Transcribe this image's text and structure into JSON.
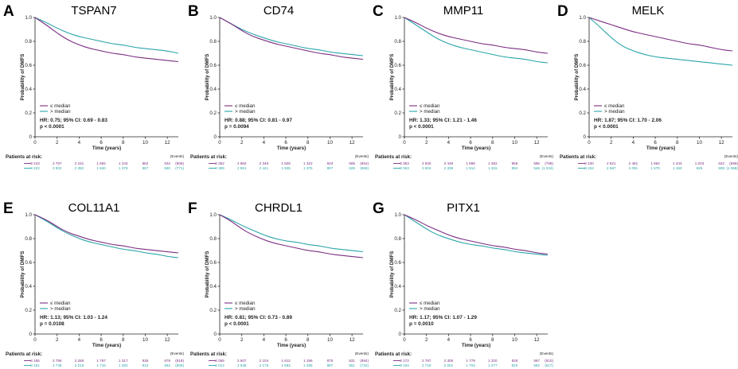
{
  "colors": {
    "low": "#7b2d82",
    "high": "#2aa5a8"
  },
  "labels": {
    "y_axis": "Probability of DMFS",
    "x_axis": "Time (years)",
    "patients_at_risk": "Patients at risk:",
    "events": "(Events)",
    "legend_low": "≤ median",
    "legend_high": "> median"
  },
  "chart_data": [
    {
      "type": "line",
      "letter": "A",
      "title": "TSPAN7",
      "xlim": [
        0,
        13
      ],
      "ylim": [
        0,
        1.0
      ],
      "xticks": [
        "0",
        "2",
        "4",
        "6",
        "8",
        "10",
        "12"
      ],
      "yticks": [
        "0",
        "0.2",
        "0.4",
        "0.6",
        "0.8",
        "1.0"
      ],
      "series": [
        {
          "name": "≤ median",
          "x": [
            0,
            1,
            2,
            3,
            4,
            5,
            6,
            7,
            8,
            9,
            10,
            11,
            12,
            13
          ],
          "y": [
            1.0,
            0.94,
            0.87,
            0.81,
            0.77,
            0.74,
            0.72,
            0.7,
            0.69,
            0.67,
            0.66,
            0.65,
            0.64,
            0.63
          ]
        },
        {
          "name": "> median",
          "x": [
            0,
            1,
            2,
            3,
            4,
            5,
            6,
            7,
            8,
            9,
            10,
            11,
            12,
            13
          ],
          "y": [
            1.0,
            0.96,
            0.91,
            0.87,
            0.84,
            0.82,
            0.8,
            0.78,
            0.77,
            0.75,
            0.74,
            0.73,
            0.72,
            0.7
          ]
        }
      ],
      "hr_lines": [
        "HR: 0.75; 95% CI: 0.69 - 0.83",
        "p < 0.0001"
      ],
      "risk_low": [
        "3 243",
        "2 767",
        "2 231",
        "1 692",
        "1 244",
        "882",
        "532"
      ],
      "events_low": "(906)",
      "risk_high": [
        "3 222",
        "2 822",
        "2 352",
        "1 840",
        "1 379",
        "967",
        "590"
      ],
      "events_high": "(771)"
    },
    {
      "type": "line",
      "letter": "B",
      "title": "CD74",
      "xlim": [
        0,
        13
      ],
      "ylim": [
        0,
        1.0
      ],
      "xticks": [
        "0",
        "2",
        "4",
        "6",
        "8",
        "10",
        "12"
      ],
      "yticks": [
        "0",
        "0.2",
        "0.4",
        "0.6",
        "0.8",
        "1.0"
      ],
      "series": [
        {
          "name": "≤ median",
          "x": [
            0,
            1,
            2,
            3,
            4,
            5,
            6,
            7,
            8,
            9,
            10,
            11,
            12,
            13
          ],
          "y": [
            1.0,
            0.95,
            0.89,
            0.84,
            0.81,
            0.78,
            0.76,
            0.74,
            0.72,
            0.7,
            0.69,
            0.67,
            0.66,
            0.65
          ]
        },
        {
          "name": "> median",
          "x": [
            0,
            1,
            2,
            3,
            4,
            5,
            6,
            7,
            8,
            9,
            10,
            11,
            12,
            13
          ],
          "y": [
            1.0,
            0.95,
            0.9,
            0.86,
            0.83,
            0.8,
            0.78,
            0.76,
            0.74,
            0.73,
            0.71,
            0.7,
            0.69,
            0.68
          ]
        }
      ],
      "hr_lines": [
        "HR: 0.88; 95% CI: 0.81 - 0.97",
        "p = 0.0094"
      ],
      "risk_low": [
        "3 352",
        "2 862",
        "2 348",
        "1 828",
        "1 322",
        "943",
        "605"
      ],
      "events_low": "(954)",
      "risk_high": [
        "3 369",
        "2 861",
        "2 441",
        "1 935",
        "1 375",
        "907",
        "629"
      ],
      "events_high": "(868)"
    },
    {
      "type": "line",
      "letter": "C",
      "title": "MMP11",
      "xlim": [
        0,
        13
      ],
      "ylim": [
        0,
        1.0
      ],
      "xticks": [
        "0",
        "2",
        "4",
        "6",
        "8",
        "10",
        "12"
      ],
      "yticks": [
        "0",
        "0.2",
        "0.4",
        "0.6",
        "0.8",
        "1.0"
      ],
      "series": [
        {
          "name": "≤ median",
          "x": [
            0,
            1,
            2,
            3,
            4,
            5,
            6,
            7,
            8,
            9,
            10,
            11,
            12,
            13
          ],
          "y": [
            1.0,
            0.96,
            0.91,
            0.87,
            0.84,
            0.82,
            0.8,
            0.78,
            0.77,
            0.75,
            0.74,
            0.73,
            0.71,
            0.7
          ]
        },
        {
          "name": "> median",
          "x": [
            0,
            1,
            2,
            3,
            4,
            5,
            6,
            7,
            8,
            9,
            10,
            11,
            12,
            13
          ],
          "y": [
            1.0,
            0.94,
            0.88,
            0.82,
            0.78,
            0.75,
            0.73,
            0.71,
            0.69,
            0.67,
            0.66,
            0.65,
            0.63,
            0.62
          ]
        }
      ],
      "hr_lines": [
        "HR: 1.33; 95% CI: 1.21 - 1.46",
        "p < 0.0001"
      ],
      "risk_low": [
        "3 363",
        "2 920",
        "2 449",
        "1 899",
        "1 392",
        "956",
        "585"
      ],
      "events_low": "(798)",
      "risk_high": [
        "3 353",
        "2 804",
        "2 339",
        "1 814",
        "1 315",
        "894",
        "546"
      ],
      "events_high": "(1 024)"
    },
    {
      "type": "line",
      "letter": "D",
      "title": "MELK",
      "xlim": [
        0,
        13
      ],
      "ylim": [
        0,
        1.0
      ],
      "xticks": [
        "0",
        "2",
        "4",
        "6",
        "8",
        "10",
        "12"
      ],
      "yticks": [
        "0",
        "0.2",
        "0.4",
        "0.6",
        "0.8",
        "1.0"
      ],
      "series": [
        {
          "name": "≤ median",
          "x": [
            0,
            1,
            2,
            3,
            4,
            5,
            6,
            7,
            8,
            9,
            10,
            11,
            12,
            13
          ],
          "y": [
            1.0,
            0.97,
            0.94,
            0.91,
            0.88,
            0.86,
            0.84,
            0.82,
            0.8,
            0.78,
            0.77,
            0.75,
            0.73,
            0.72
          ]
        },
        {
          "name": "> median",
          "x": [
            0,
            1,
            2,
            3,
            4,
            5,
            6,
            7,
            8,
            9,
            10,
            11,
            12,
            13
          ],
          "y": [
            1.0,
            0.92,
            0.83,
            0.76,
            0.72,
            0.69,
            0.67,
            0.66,
            0.65,
            0.64,
            0.63,
            0.62,
            0.61,
            0.6
          ]
        }
      ],
      "hr_lines": [
        "HR: 1.87; 95% CI: 1.70 - 2.06",
        "p < 0.0001"
      ],
      "risk_low": [
        "3 230",
        "2 921",
        "2 481",
        "1 962",
        "1 443",
        "1 023",
        "622"
      ],
      "events_low": "(669)",
      "risk_high": [
        "3 234",
        "2 667",
        "2 091",
        "1 570",
        "1 150",
        "826",
        "509"
      ],
      "events_high": "(1 068)"
    },
    {
      "type": "line",
      "letter": "E",
      "title": "COL11A1",
      "xlim": [
        0,
        13
      ],
      "ylim": [
        0,
        1.0
      ],
      "xticks": [
        "0",
        "2",
        "4",
        "6",
        "8",
        "10",
        "12"
      ],
      "yticks": [
        "0",
        "0.2",
        "0.4",
        "0.6",
        "0.8",
        "1.0"
      ],
      "series": [
        {
          "name": "≤ median",
          "x": [
            0,
            1,
            2,
            3,
            4,
            5,
            6,
            7,
            8,
            9,
            10,
            11,
            12,
            13
          ],
          "y": [
            1.0,
            0.96,
            0.9,
            0.85,
            0.82,
            0.79,
            0.77,
            0.75,
            0.74,
            0.72,
            0.71,
            0.7,
            0.69,
            0.68
          ]
        },
        {
          "name": "> median",
          "x": [
            0,
            1,
            2,
            3,
            4,
            5,
            6,
            7,
            8,
            9,
            10,
            11,
            12,
            13
          ],
          "y": [
            1.0,
            0.95,
            0.89,
            0.84,
            0.8,
            0.77,
            0.75,
            0.73,
            0.71,
            0.7,
            0.68,
            0.67,
            0.65,
            0.64
          ]
        }
      ],
      "hr_lines": [
        "HR: 1.13; 95% CI: 1.03 - 1.24",
        "p = 0.0108"
      ],
      "risk_low": [
        "3 185",
        "2 756",
        "2 268",
        "1 767",
        "1 317",
        "935",
        "579"
      ],
      "events_low": "(819)",
      "risk_high": [
        "3 181",
        "2 748",
        "2 219",
        "1 716",
        "1 260",
        "913",
        "552"
      ],
      "events_high": "(908)"
    },
    {
      "type": "line",
      "letter": "F",
      "title": "CHRDL1",
      "xlim": [
        0,
        13
      ],
      "ylim": [
        0,
        1.0
      ],
      "xticks": [
        "0",
        "2",
        "4",
        "6",
        "8",
        "10",
        "12"
      ],
      "yticks": [
        "0",
        "0.2",
        "0.4",
        "0.6",
        "0.8",
        "1.0"
      ],
      "series": [
        {
          "name": "≤ median",
          "x": [
            0,
            1,
            2,
            3,
            4,
            5,
            6,
            7,
            8,
            9,
            10,
            11,
            12,
            13
          ],
          "y": [
            1.0,
            0.95,
            0.88,
            0.83,
            0.79,
            0.76,
            0.74,
            0.72,
            0.7,
            0.69,
            0.67,
            0.66,
            0.65,
            0.64
          ]
        },
        {
          "name": "> median",
          "x": [
            0,
            1,
            2,
            3,
            4,
            5,
            6,
            7,
            8,
            9,
            10,
            11,
            12,
            13
          ],
          "y": [
            1.0,
            0.96,
            0.91,
            0.87,
            0.83,
            0.8,
            0.78,
            0.77,
            0.75,
            0.74,
            0.72,
            0.71,
            0.7,
            0.69
          ]
        }
      ],
      "hr_lines": [
        "HR: 0.81; 95% CI: 0.73 - 0.89",
        "p < 0.0001"
      ],
      "risk_low": [
        "3 055",
        "2 607",
        "2 104",
        "1 612",
        "1 196",
        "875",
        "531"
      ],
      "events_low": "(894)",
      "risk_high": [
        "3 012",
        "2 638",
        "2 178",
        "1 684",
        "1 285",
        "887",
        "561"
      ],
      "events_high": "(732)"
    },
    {
      "type": "line",
      "letter": "G",
      "title": "PITX1",
      "xlim": [
        0,
        13
      ],
      "ylim": [
        0,
        1.0
      ],
      "xticks": [
        "0",
        "2",
        "4",
        "6",
        "8",
        "10",
        "12"
      ],
      "yticks": [
        "0",
        "0.2",
        "0.4",
        "0.6",
        "0.8",
        "1.0"
      ],
      "series": [
        {
          "name": "≤ median",
          "x": [
            0,
            1,
            2,
            3,
            4,
            5,
            6,
            7,
            8,
            9,
            10,
            11,
            12,
            13
          ],
          "y": [
            1.0,
            0.96,
            0.91,
            0.87,
            0.83,
            0.8,
            0.78,
            0.76,
            0.74,
            0.73,
            0.71,
            0.7,
            0.68,
            0.67
          ]
        },
        {
          "name": "> median",
          "x": [
            0,
            1,
            2,
            3,
            4,
            5,
            6,
            7,
            8,
            9,
            10,
            11,
            12,
            13
          ],
          "y": [
            1.0,
            0.94,
            0.88,
            0.83,
            0.8,
            0.77,
            0.75,
            0.74,
            0.72,
            0.71,
            0.69,
            0.68,
            0.67,
            0.66
          ]
        }
      ],
      "hr_lines": [
        "HR: 1.17; 95% CI: 1.07 - 1.29",
        "p = 0.0010"
      ],
      "risk_low": [
        "3 172",
        "2 787",
        "2 306",
        "1 779",
        "1 320",
        "928",
        "567"
      ],
      "events_low": "(810)",
      "risk_high": [
        "3 194",
        "2 719",
        "2 201",
        "1 704",
        "1 277",
        "920",
        "562"
      ],
      "events_high": "(917)"
    }
  ]
}
